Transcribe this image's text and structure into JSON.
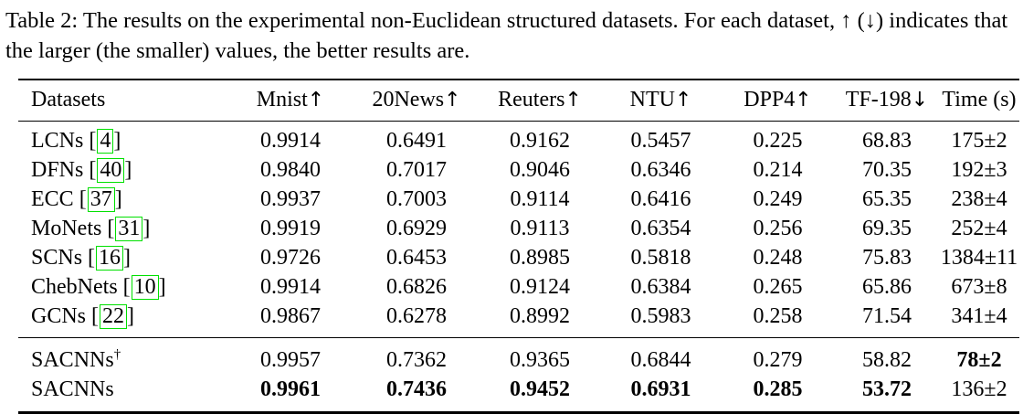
{
  "caption": {
    "text": "Table 2: The results on the experimental non-Euclidean structured datasets. For each dataset, ↑ (↓) indicates that the larger (the smaller) values, the better results are."
  },
  "table": {
    "citation_brackets": {
      "left": "[",
      "right": "]"
    },
    "columns": [
      {
        "label": "Datasets",
        "arrow": ""
      },
      {
        "label": "Mnist",
        "arrow": "↑"
      },
      {
        "label": "20News",
        "arrow": "↑"
      },
      {
        "label": "Reuters",
        "arrow": "↑"
      },
      {
        "label": "NTU",
        "arrow": "↑"
      },
      {
        "label": "DPP4",
        "arrow": "↑"
      },
      {
        "label": "TF-198",
        "arrow": "↓"
      },
      {
        "label": "Time (s)",
        "arrow": ""
      }
    ],
    "rows": [
      {
        "name": "LCNs",
        "citation": "4",
        "values": [
          "0.9914",
          "0.6491",
          "0.9162",
          "0.5457",
          "0.225",
          "68.83",
          "175±2"
        ],
        "bold_values": [
          false,
          false,
          false,
          false,
          false,
          false,
          false
        ]
      },
      {
        "name": "DFNs",
        "citation": "40",
        "values": [
          "0.9840",
          "0.7017",
          "0.9046",
          "0.6346",
          "0.214",
          "70.35",
          "192±3"
        ],
        "bold_values": [
          false,
          false,
          false,
          false,
          false,
          false,
          false
        ]
      },
      {
        "name": "ECC",
        "citation": "37",
        "values": [
          "0.9937",
          "0.7003",
          "0.9114",
          "0.6416",
          "0.249",
          "65.35",
          "238±4"
        ],
        "bold_values": [
          false,
          false,
          false,
          false,
          false,
          false,
          false
        ]
      },
      {
        "name": "MoNets",
        "citation": "31",
        "values": [
          "0.9919",
          "0.6929",
          "0.9113",
          "0.6354",
          "0.256",
          "69.35",
          "252±4"
        ],
        "bold_values": [
          false,
          false,
          false,
          false,
          false,
          false,
          false
        ]
      },
      {
        "name": "SCNs",
        "citation": "16",
        "values": [
          "0.9726",
          "0.6453",
          "0.8985",
          "0.5818",
          "0.248",
          "75.83",
          "1384±11"
        ],
        "bold_values": [
          false,
          false,
          false,
          false,
          false,
          false,
          false
        ]
      },
      {
        "name": "ChebNets",
        "citation": "10",
        "values": [
          "0.9914",
          "0.6826",
          "0.9124",
          "0.6384",
          "0.265",
          "65.86",
          "673±8"
        ],
        "bold_values": [
          false,
          false,
          false,
          false,
          false,
          false,
          false
        ]
      },
      {
        "name": "GCNs",
        "citation": "22",
        "values": [
          "0.9867",
          "0.6278",
          "0.8992",
          "0.5983",
          "0.258",
          "71.54",
          "341±4"
        ],
        "bold_values": [
          false,
          false,
          false,
          false,
          false,
          false,
          false
        ]
      },
      {
        "name": "SACNNs",
        "superscript": "†",
        "values": [
          "0.9957",
          "0.7362",
          "0.9365",
          "0.6844",
          "0.279",
          "58.82",
          "78±2"
        ],
        "bold_values": [
          false,
          false,
          false,
          false,
          false,
          false,
          true
        ]
      },
      {
        "name": "SACNNs",
        "values": [
          "0.9961",
          "0.7436",
          "0.9452",
          "0.6931",
          "0.285",
          "53.72",
          "136±2"
        ],
        "bold_values": [
          true,
          true,
          true,
          true,
          true,
          true,
          false
        ]
      }
    ]
  },
  "colors": {
    "citation_box": "#00e000",
    "text": "#000000",
    "rule": "#000000"
  }
}
